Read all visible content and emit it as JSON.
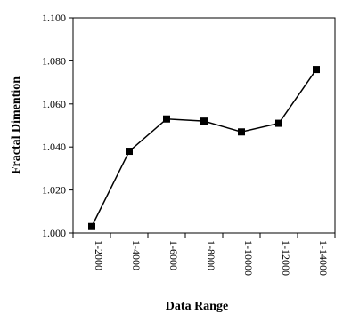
{
  "chart_data": {
    "type": "line",
    "categories": [
      "1-2000",
      "1-4000",
      "1-6000",
      "1-8000",
      "1-10000",
      "1-12000",
      "1-14000"
    ],
    "series": [
      {
        "values": [
          1.003,
          1.038,
          1.053,
          1.052,
          1.047,
          1.051,
          1.076
        ],
        "color": "#000000",
        "marker": "square"
      }
    ],
    "title": "",
    "xlabel": "Data Range",
    "ylabel": "Fractal Dimention",
    "ylim": [
      1.0,
      1.1
    ],
    "yticks": [
      "1.000",
      "1.020",
      "1.040",
      "1.060",
      "1.080",
      "1.100"
    ],
    "grid": false,
    "legend": "none"
  }
}
